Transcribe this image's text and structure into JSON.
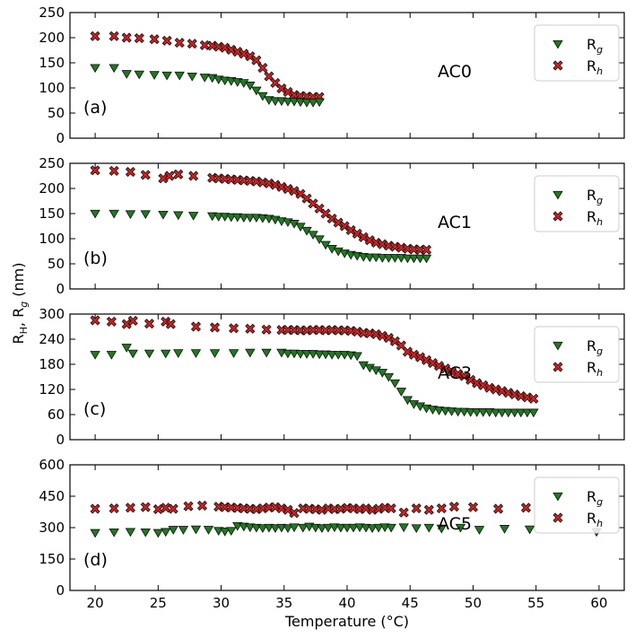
{
  "figure": {
    "xlabel": "Temperature (°C)",
    "ylabel": "R_H, R_g (nm)",
    "xticks": [
      20,
      25,
      30,
      35,
      40,
      45,
      50,
      55,
      60
    ],
    "xlim": [
      18,
      62
    ]
  },
  "legend_labels": {
    "rg_base": "R",
    "rg_sub": "g",
    "rh_base": "R",
    "rh_sub": "h"
  },
  "colors": {
    "rg": "#1f7a1f",
    "rh": "#d02020",
    "edge": "#111111"
  },
  "chart_data": [
    {
      "type": "scatter",
      "panel_label": "(a)",
      "sample": "AC0",
      "ylim": [
        0,
        250
      ],
      "yticks": [
        0,
        50,
        100,
        150,
        200,
        250
      ],
      "series": [
        {
          "name": "Rg",
          "marker": "triangle-down",
          "x": [
            20,
            21.5,
            22.5,
            23.5,
            24.7,
            25.7,
            26.7,
            27.7,
            28.7,
            29.3,
            29.8,
            30.3,
            30.8,
            31.3,
            31.8,
            32.3,
            32.8,
            33.3,
            33.8,
            34.3,
            34.8,
            35.3,
            35.8,
            36.3,
            36.8,
            37.3,
            37.8
          ],
          "y": [
            140,
            140,
            128,
            127,
            126,
            125,
            125,
            123,
            121,
            120,
            117,
            115,
            114,
            112,
            110,
            105,
            95,
            84,
            76,
            74,
            74,
            73,
            73,
            72,
            71,
            71,
            72
          ]
        },
        {
          "name": "Rh",
          "marker": "x",
          "x": [
            20,
            21.5,
            22.5,
            23.5,
            24.7,
            25.7,
            26.7,
            27.7,
            28.7,
            29.3,
            29.8,
            30.3,
            30.8,
            31.3,
            31.8,
            32.3,
            32.8,
            33.3,
            33.8,
            34.3,
            34.8,
            35.3,
            35.8,
            36.3,
            36.8,
            37.3,
            37.8
          ],
          "y": [
            203,
            203,
            200,
            199,
            197,
            194,
            190,
            188,
            185,
            184,
            182,
            180,
            176,
            172,
            168,
            163,
            155,
            140,
            123,
            110,
            99,
            92,
            86,
            84,
            83,
            82,
            82
          ]
        }
      ]
    },
    {
      "type": "scatter",
      "panel_label": "(b)",
      "sample": "AC1",
      "ylim": [
        0,
        250
      ],
      "yticks": [
        0,
        50,
        100,
        150,
        200,
        250
      ],
      "series": [
        {
          "name": "Rg",
          "marker": "triangle-down",
          "x": [
            20,
            21.5,
            22.8,
            24,
            25.4,
            26.6,
            27.8,
            29.3,
            29.8,
            30.3,
            30.8,
            31.3,
            31.8,
            32.3,
            32.8,
            33.3,
            33.8,
            34.3,
            34.8,
            35.3,
            35.8,
            36.3,
            36.8,
            37.3,
            37.8,
            38.3,
            38.8,
            39.3,
            39.8,
            40.3,
            40.8,
            41.3,
            41.8,
            42.3,
            42.8,
            43.3,
            43.8,
            44.3,
            44.8,
            45.3,
            45.8,
            46.3
          ],
          "y": [
            150,
            150,
            149,
            149,
            148,
            147,
            146,
            145,
            144,
            144,
            143,
            143,
            142,
            142,
            142,
            141,
            140,
            138,
            135,
            133,
            130,
            124,
            116,
            108,
            99,
            88,
            80,
            75,
            71,
            68,
            66,
            64,
            63,
            63,
            62,
            62,
            62,
            62,
            61,
            61,
            61,
            61
          ]
        },
        {
          "name": "Rh",
          "marker": "x",
          "x": [
            20,
            21.5,
            22.8,
            24,
            25.4,
            25.9,
            26.6,
            27.8,
            29.3,
            29.8,
            30.3,
            30.8,
            31.3,
            31.8,
            32.3,
            32.8,
            33.3,
            33.8,
            34.3,
            34.8,
            35.3,
            35.8,
            36.3,
            36.8,
            37.3,
            37.8,
            38.3,
            38.8,
            39.3,
            39.8,
            40.3,
            40.8,
            41.3,
            41.8,
            42.3,
            42.8,
            43.3,
            43.8,
            44.3,
            44.8,
            45.3,
            45.8,
            46.3
          ],
          "y": [
            236,
            235,
            233,
            227,
            220,
            225,
            228,
            225,
            221,
            220,
            219,
            218,
            217,
            216,
            215,
            214,
            212,
            210,
            207,
            203,
            199,
            195,
            189,
            180,
            170,
            160,
            150,
            140,
            132,
            125,
            117,
            110,
            103,
            97,
            92,
            89,
            86,
            84,
            82,
            80,
            79,
            78,
            78
          ]
        }
      ]
    },
    {
      "type": "scatter",
      "panel_label": "(c)",
      "sample": "AC3",
      "ylim": [
        0,
        300
      ],
      "yticks": [
        0,
        60,
        120,
        180,
        240,
        300
      ],
      "series": [
        {
          "name": "Rg",
          "marker": "triangle-down",
          "x": [
            20,
            21.3,
            22.5,
            23,
            24.3,
            25.6,
            26.6,
            28,
            29.5,
            31,
            32.3,
            33.6,
            34.8,
            35.3,
            35.8,
            36.3,
            36.8,
            37.3,
            37.8,
            38.3,
            38.8,
            39.3,
            39.8,
            40.3,
            40.8,
            41.3,
            41.8,
            42.3,
            42.8,
            43.3,
            43.8,
            44.3,
            44.8,
            45.3,
            45.8,
            46.3,
            46.8,
            47.3,
            47.8,
            48.3,
            48.8,
            49.3,
            49.8,
            50.3,
            50.8,
            51.3,
            51.8,
            52.3,
            52.8,
            53.3,
            53.8,
            54.3,
            54.8
          ],
          "y": [
            203,
            203,
            220,
            206,
            206,
            206,
            207,
            207,
            207,
            207,
            208,
            208,
            208,
            206,
            206,
            205,
            205,
            205,
            204,
            204,
            203,
            203,
            203,
            202,
            200,
            178,
            172,
            166,
            160,
            150,
            135,
            115,
            95,
            85,
            80,
            75,
            72,
            70,
            69,
            68,
            67,
            67,
            66,
            66,
            66,
            66,
            65,
            65,
            65,
            65,
            65,
            65,
            65
          ]
        },
        {
          "name": "Rh",
          "marker": "x",
          "x": [
            20,
            21.3,
            22.5,
            23,
            24.3,
            25.6,
            26,
            28,
            29.5,
            31,
            32.3,
            33.6,
            34.8,
            35.3,
            35.8,
            36.3,
            36.8,
            37.3,
            37.8,
            38.3,
            38.8,
            39.3,
            39.8,
            40.3,
            40.8,
            41.3,
            41.8,
            42.3,
            42.8,
            43.3,
            43.8,
            44.3,
            44.8,
            45.3,
            45.8,
            46.3,
            46.8,
            47.3,
            47.8,
            48.3,
            48.8,
            49.3,
            49.8,
            50.3,
            50.8,
            51.3,
            51.8,
            52.3,
            52.8,
            53.3,
            53.8,
            54.3,
            54.8
          ],
          "y": [
            285,
            282,
            276,
            284,
            277,
            282,
            276,
            270,
            268,
            266,
            265,
            263,
            262,
            262,
            262,
            261,
            261,
            262,
            262,
            261,
            262,
            261,
            261,
            260,
            258,
            255,
            254,
            252,
            248,
            243,
            235,
            225,
            210,
            203,
            197,
            190,
            183,
            176,
            170,
            163,
            157,
            152,
            143,
            135,
            130,
            124,
            120,
            116,
            112,
            108,
            104,
            101,
            98
          ]
        }
      ]
    },
    {
      "type": "scatter",
      "panel_label": "(d)",
      "sample": "AC5",
      "ylim": [
        0,
        600
      ],
      "yticks": [
        0,
        150,
        300,
        450,
        600
      ],
      "series": [
        {
          "name": "Rg",
          "marker": "triangle-down",
          "x": [
            20,
            21.5,
            22.8,
            24,
            25,
            25.6,
            26.2,
            27,
            28,
            29,
            29.8,
            30.3,
            30.8,
            31.3,
            31.8,
            32.3,
            32.8,
            33.3,
            33.8,
            34.3,
            34.8,
            35.3,
            35.8,
            36.5,
            37,
            37.5,
            38,
            38.5,
            39,
            39.5,
            40,
            40.5,
            41,
            41.5,
            42,
            42.5,
            43,
            43.5,
            44.5,
            45.5,
            46.5,
            47.5,
            49,
            50.5,
            52.5,
            54.5,
            59.8
          ],
          "y": [
            275,
            278,
            280,
            278,
            275,
            280,
            290,
            290,
            292,
            290,
            285,
            282,
            285,
            308,
            305,
            302,
            300,
            298,
            300,
            298,
            300,
            298,
            302,
            300,
            305,
            300,
            298,
            300,
            302,
            300,
            300,
            300,
            302,
            300,
            298,
            300,
            302,
            300,
            302,
            298,
            300,
            296,
            300,
            290,
            295,
            292,
            280
          ]
        },
        {
          "name": "Rh",
          "marker": "x",
          "x": [
            20,
            21.5,
            22.8,
            24,
            25,
            25.6,
            26.2,
            27.4,
            28.5,
            29.8,
            30.3,
            30.8,
            31.3,
            31.8,
            32.3,
            32.8,
            33.3,
            33.8,
            34.3,
            34.8,
            35.3,
            35.8,
            36.5,
            37,
            37.5,
            38,
            38.5,
            39,
            39.5,
            40,
            40.5,
            41,
            41.5,
            42,
            42.5,
            43,
            43.5,
            44.5,
            45.5,
            46.5,
            47.5,
            48.5,
            50,
            52,
            54.2
          ],
          "y": [
            390,
            392,
            395,
            398,
            388,
            395,
            390,
            402,
            405,
            400,
            398,
            396,
            394,
            392,
            390,
            388,
            392,
            396,
            398,
            392,
            385,
            370,
            392,
            390,
            388,
            385,
            392,
            388,
            390,
            394,
            392,
            388,
            392,
            385,
            390,
            395,
            392,
            372,
            392,
            385,
            392,
            400,
            398,
            390,
            395
          ]
        }
      ]
    }
  ]
}
